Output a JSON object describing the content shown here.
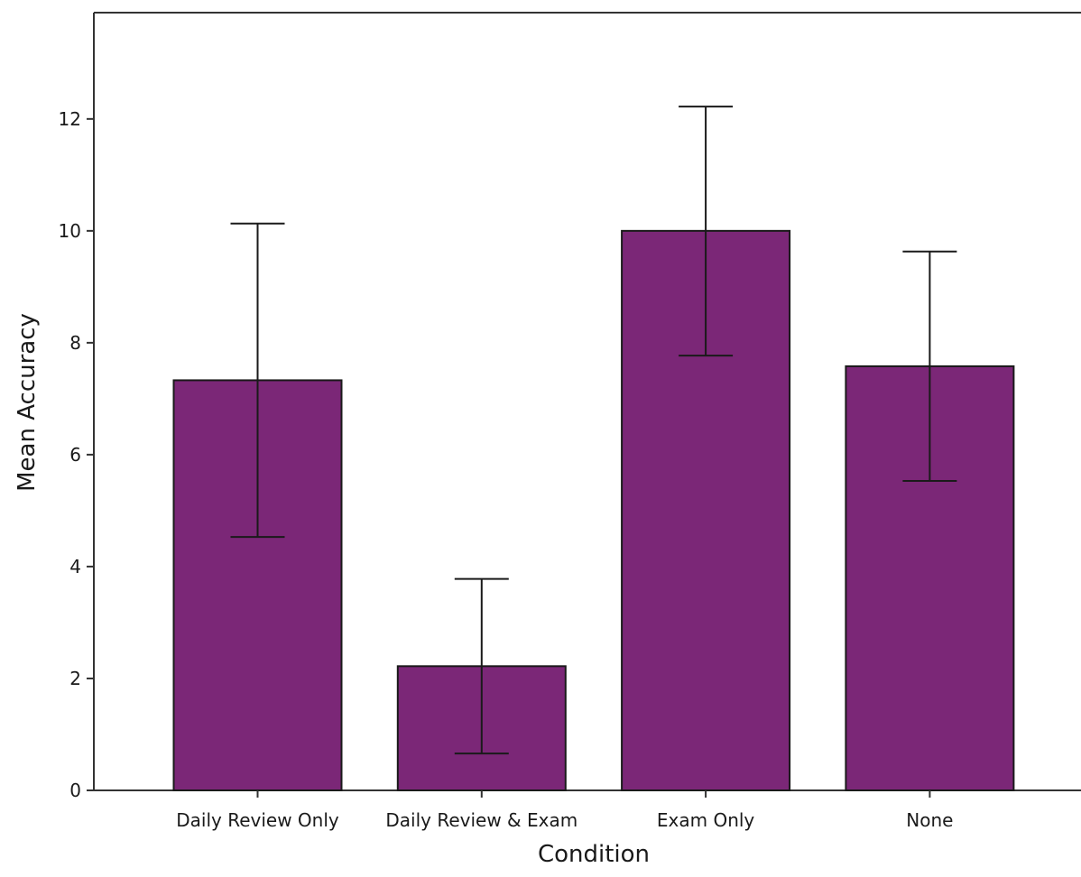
{
  "chart_data": {
    "type": "bar",
    "title": "",
    "xlabel": "Condition",
    "ylabel": "Mean Accuracy",
    "categories": [
      "Daily Review Only",
      "Daily Review & Exam",
      "Exam Only",
      "None"
    ],
    "values": [
      7.33,
      2.22,
      10.0,
      7.58
    ],
    "error_bars": {
      "lower": [
        4.53,
        0.66,
        7.77,
        5.53
      ],
      "upper": [
        10.13,
        3.78,
        12.22,
        9.63
      ]
    },
    "ylim": [
      0,
      13.9
    ],
    "yticks": [
      0,
      2,
      4,
      6,
      8,
      10,
      12
    ],
    "grid": false,
    "legend": "none",
    "colors": {
      "bar": "#7b2777",
      "bar_stroke": "#1a1a1a",
      "axis": "#333333",
      "error_bar": "#1a1a1a"
    }
  }
}
